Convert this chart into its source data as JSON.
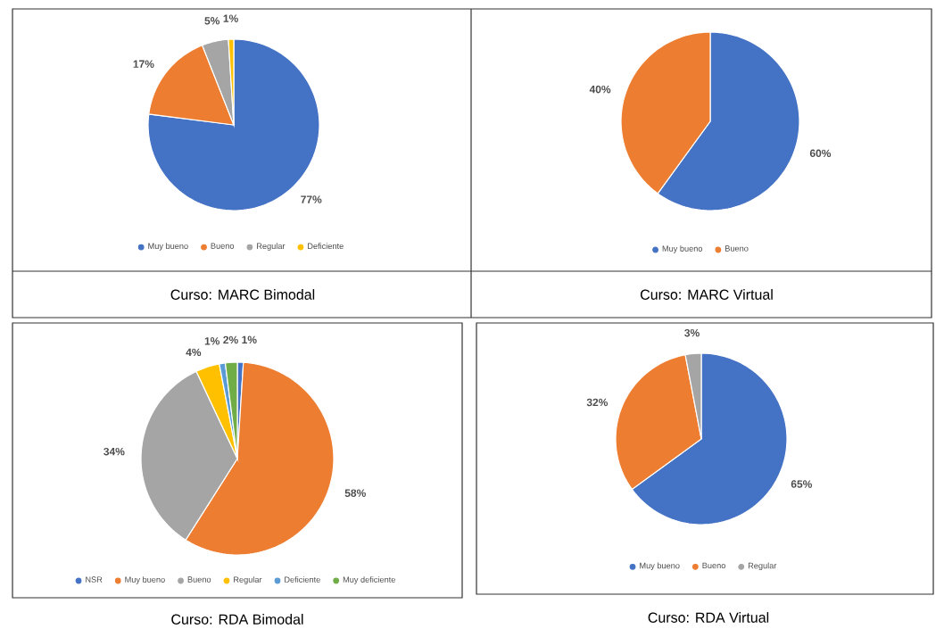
{
  "chart_data": [
    {
      "type": "pie",
      "title": "Curso: MARC Bimodal",
      "categories": [
        "Muy bueno",
        "Bueno",
        "Regular",
        "Deficiente"
      ],
      "values": [
        77,
        17,
        5,
        1
      ],
      "colors": [
        "#4472c4",
        "#ed7d31",
        "#a5a5a5",
        "#ffc000"
      ],
      "value_labels": [
        "77%",
        "17%",
        "5%",
        "1%"
      ],
      "legend": "bottom"
    },
    {
      "type": "pie",
      "title": "Curso: MARC Virtual",
      "categories": [
        "Muy bueno",
        "Bueno"
      ],
      "values": [
        60,
        40
      ],
      "colors": [
        "#4472c4",
        "#ed7d31"
      ],
      "value_labels": [
        "60%",
        "40%"
      ],
      "legend": "bottom"
    },
    {
      "type": "pie",
      "title": "Curso: RDA Bimodal",
      "categories": [
        "NSR",
        "Muy bueno",
        "Bueno",
        "Regular",
        "Deficiente",
        "Muy deficiente"
      ],
      "values": [
        1,
        58,
        34,
        4,
        1,
        2
      ],
      "colors": [
        "#4472c4",
        "#ed7d31",
        "#a5a5a5",
        "#ffc000",
        "#5b9bd5",
        "#70ad47"
      ],
      "value_labels": [
        "1%",
        "58%",
        "34%",
        "4%",
        "1%",
        "2%"
      ],
      "legend": "bottom"
    },
    {
      "type": "pie",
      "title": "Curso: RDA Virtual",
      "categories": [
        "Muy bueno",
        "Bueno",
        "Regular"
      ],
      "values": [
        65,
        32,
        3
      ],
      "colors": [
        "#4472c4",
        "#ed7d31",
        "#a5a5a5"
      ],
      "value_labels": [
        "65%",
        "32%",
        "3%"
      ],
      "legend": "bottom"
    }
  ]
}
